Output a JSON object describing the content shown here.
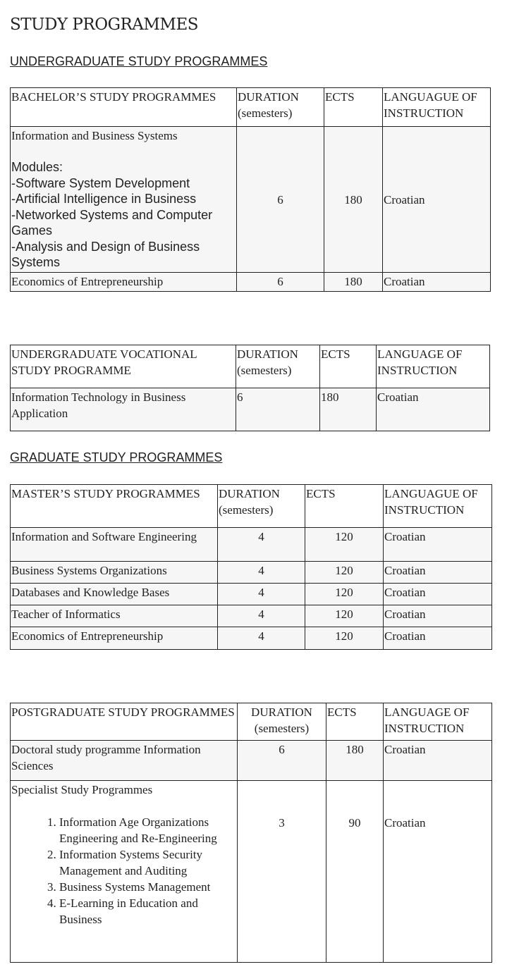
{
  "title": "STUDY PROGRAMMES",
  "undergraduate_heading": "UNDERGRADUATE STUDY PROGRAMMES",
  "graduate_heading": "GRADUATE STUDY PROGRAMMES",
  "bachelor": {
    "headers": [
      "BACHELOR’S STUDY PROGRAMMES",
      "DURATION (semesters)",
      "ECTS",
      "LANGUAGUE OF INSTRUCTION"
    ],
    "rows": [
      {
        "name": "Information and Business Systems",
        "modules_label": "Modules:",
        "modules": [
          "-Software System Development",
          "-Artificial Intelligence in Business",
          "-Networked Systems and Computer Games",
          "-Analysis and Design of Business Systems"
        ],
        "duration": "6",
        "ects": "180",
        "language": "Croatian"
      },
      {
        "name": "Economics of Entrepreneurship",
        "duration": "6",
        "ects": "180",
        "language": "Croatian"
      }
    ]
  },
  "vocational": {
    "headers": [
      "UNDERGRADUATE VOCATIONAL STUDY PROGRAMME",
      "DURATION (semesters)",
      "ECTS",
      "LANGUAGE OF INSTRUCTION"
    ],
    "rows": [
      {
        "name": "Information Technology in Business Application",
        "duration": "6",
        "ects": "180",
        "language": "Croatian"
      }
    ]
  },
  "master": {
    "headers": [
      "MASTER’S STUDY PROGRAMMES",
      "DURATION (semesters)",
      "ECTS",
      "LANGUAGUE OF INSTRUCTION"
    ],
    "rows": [
      {
        "name": "Information and Software Engineering",
        "duration": "4",
        "ects": "120",
        "language": "Croatian"
      },
      {
        "name": "Business Systems Organizations",
        "duration": "4",
        "ects": "120",
        "language": "Croatian"
      },
      {
        "name": "Databases and Knowledge Bases",
        "duration": "4",
        "ects": "120",
        "language": "Croatian"
      },
      {
        "name": "Teacher of Informatics",
        "duration": "4",
        "ects": "120",
        "language": "Croatian"
      },
      {
        "name": "Economics of Entrepreneurship",
        "duration": "4",
        "ects": "120",
        "language": "Croatian"
      }
    ]
  },
  "postgraduate": {
    "headers": [
      "POSTGRADUATE STUDY PROGRAMMES",
      "DURATION (semesters)",
      "ECTS",
      "LANGUAGE OF INSTRUCTION"
    ],
    "rows": [
      {
        "name": "Doctoral study programme Information Sciences",
        "duration": "6",
        "ects": "180",
        "language": "Croatian"
      },
      {
        "name": "Specialist Study Programmes",
        "items": [
          "Information Age Organizations Engineering and Re-Engineering",
          "Information Systems Security Management and Auditing",
          "Business Systems Management",
          "E-Learning in Education and Business"
        ],
        "duration": "3",
        "ects": "90",
        "language": "Croatian"
      }
    ]
  }
}
